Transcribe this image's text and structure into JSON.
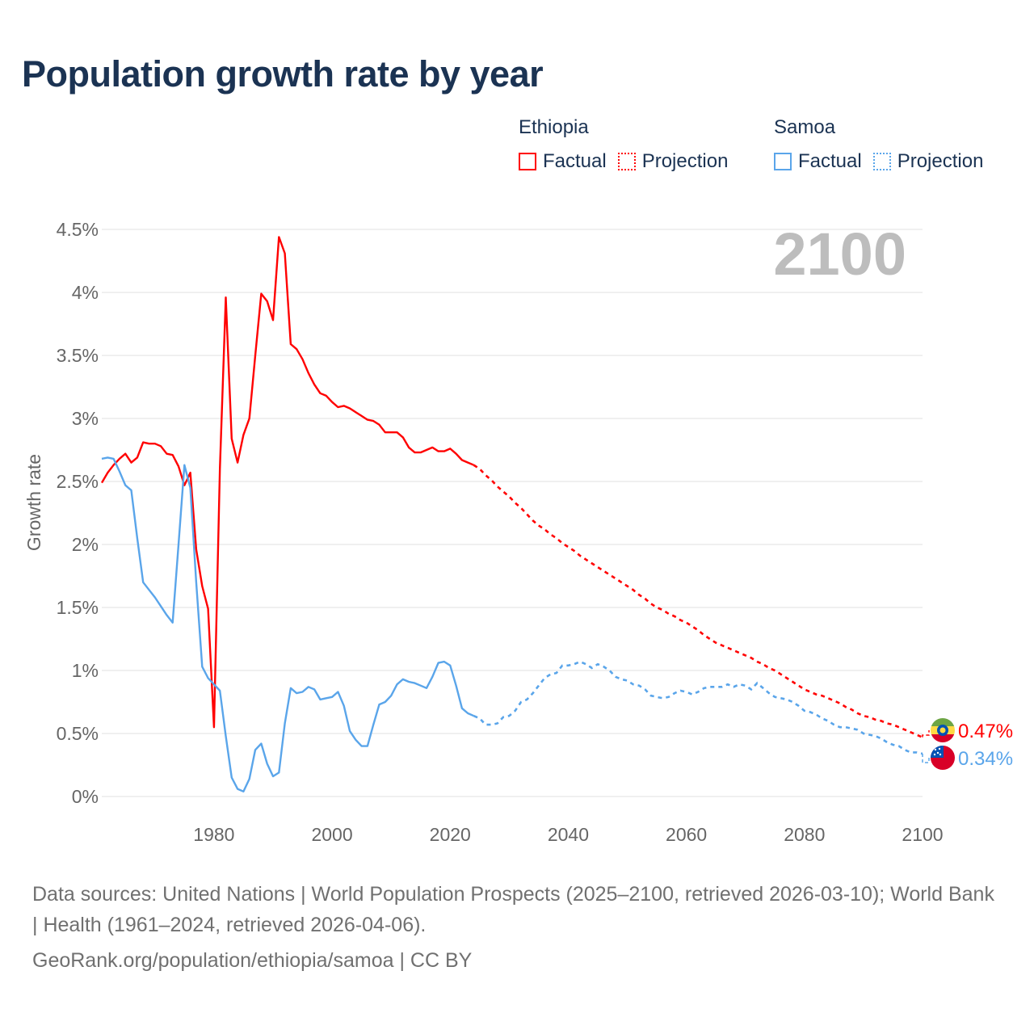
{
  "chart_data": {
    "type": "line",
    "title": "Population growth rate by year",
    "xlabel": "",
    "ylabel": "Growth rate",
    "xlim": [
      1961,
      2100
    ],
    "ylim": [
      0,
      4.5
    ],
    "x_ticks": [
      1980,
      2000,
      2020,
      2040,
      2060,
      2080,
      2100
    ],
    "x_tick_labels": [
      "1980",
      "2000",
      "2020",
      "2040",
      "2060",
      "2080",
      "2100"
    ],
    "y_ticks": [
      0,
      0.5,
      1,
      1.5,
      2,
      2.5,
      3,
      3.5,
      4,
      4.5
    ],
    "y_tick_labels": [
      "0%",
      "0.5%",
      "1%",
      "1.5%",
      "2%",
      "2.5%",
      "3%",
      "3.5%",
      "4%",
      "4.5%"
    ],
    "grid": true,
    "legend_placement": "top-right",
    "current_year_label": "2100",
    "series": [
      {
        "name": "Ethiopia",
        "color": "#ff0000",
        "end_label": "0.47%",
        "factual": {
          "label": "Factual",
          "start_year": 1961,
          "values": [
            2.49,
            2.57,
            2.63,
            2.68,
            2.72,
            2.65,
            2.69,
            2.81,
            2.8,
            2.8,
            2.78,
            2.72,
            2.71,
            2.62,
            2.47,
            2.57,
            1.96,
            1.67,
            1.49,
            0.55,
            2.6,
            3.96,
            2.84,
            2.65,
            2.87,
            3.0,
            3.5,
            3.99,
            3.93,
            3.78,
            4.44,
            4.31,
            3.59,
            3.55,
            3.47,
            3.36,
            3.27,
            3.2,
            3.18,
            3.13,
            3.09,
            3.1,
            3.08,
            3.05,
            3.02,
            2.99,
            2.98,
            2.95,
            2.89,
            2.89,
            2.89,
            2.85,
            2.77,
            2.73,
            2.73,
            2.75,
            2.77,
            2.74,
            2.74,
            2.76,
            2.72,
            2.67,
            2.65,
            2.63
          ]
        },
        "projection": {
          "label": "Projection",
          "start_year": 2025,
          "values": [
            2.6,
            2.55,
            2.51,
            2.46,
            2.42,
            2.38,
            2.33,
            2.29,
            2.24,
            2.19,
            2.15,
            2.12,
            2.08,
            2.05,
            2.01,
            1.98,
            1.95,
            1.91,
            1.88,
            1.85,
            1.82,
            1.79,
            1.76,
            1.73,
            1.7,
            1.67,
            1.64,
            1.6,
            1.57,
            1.53,
            1.5,
            1.48,
            1.45,
            1.43,
            1.4,
            1.38,
            1.35,
            1.32,
            1.28,
            1.25,
            1.22,
            1.2,
            1.18,
            1.16,
            1.14,
            1.12,
            1.1,
            1.07,
            1.05,
            1.02,
            1.0,
            0.97,
            0.94,
            0.91,
            0.88,
            0.85,
            0.83,
            0.81,
            0.8,
            0.78,
            0.76,
            0.74,
            0.71,
            0.69,
            0.66,
            0.64,
            0.63,
            0.61,
            0.6,
            0.58,
            0.57,
            0.55,
            0.53,
            0.51,
            0.49,
            0.47
          ]
        }
      },
      {
        "name": "Samoa",
        "color": "#5aa5ea",
        "end_label": "0.34%",
        "factual": {
          "label": "Factual",
          "start_year": 1961,
          "values": [
            2.68,
            2.69,
            2.68,
            2.58,
            2.47,
            2.43,
            2.05,
            1.7,
            1.64,
            1.58,
            1.51,
            1.44,
            1.38,
            2.0,
            2.63,
            2.45,
            1.7,
            1.03,
            0.94,
            0.89,
            0.84,
            0.48,
            0.15,
            0.06,
            0.04,
            0.14,
            0.37,
            0.42,
            0.26,
            0.16,
            0.19,
            0.58,
            0.86,
            0.82,
            0.83,
            0.87,
            0.85,
            0.77,
            0.78,
            0.79,
            0.83,
            0.72,
            0.52,
            0.45,
            0.4,
            0.4,
            0.57,
            0.73,
            0.75,
            0.8,
            0.89,
            0.93,
            0.91,
            0.9,
            0.88,
            0.86,
            0.95,
            1.06,
            1.07,
            1.04,
            0.88,
            0.7,
            0.66,
            0.64
          ]
        },
        "projection": {
          "label": "Projection",
          "start_year": 2025,
          "values": [
            0.62,
            0.57,
            0.57,
            0.58,
            0.63,
            0.64,
            0.68,
            0.75,
            0.77,
            0.82,
            0.88,
            0.94,
            0.97,
            0.98,
            1.04,
            1.04,
            1.05,
            1.07,
            1.05,
            1.02,
            1.05,
            1.03,
            1.0,
            0.95,
            0.93,
            0.92,
            0.89,
            0.88,
            0.85,
            0.8,
            0.79,
            0.78,
            0.79,
            0.82,
            0.84,
            0.83,
            0.81,
            0.83,
            0.86,
            0.87,
            0.87,
            0.87,
            0.89,
            0.87,
            0.89,
            0.88,
            0.85,
            0.9,
            0.86,
            0.82,
            0.79,
            0.78,
            0.77,
            0.75,
            0.72,
            0.68,
            0.67,
            0.65,
            0.62,
            0.6,
            0.57,
            0.55,
            0.55,
            0.54,
            0.53,
            0.5,
            0.49,
            0.48,
            0.46,
            0.43,
            0.41,
            0.4,
            0.37,
            0.35,
            0.35,
            0.34
          ]
        }
      }
    ]
  },
  "footer": {
    "sources": "Data sources: United Nations | World Population Prospects (2025–2100, retrieved 2026-03-10); World Bank | Health (1961–2024, retrieved 2026-04-06).",
    "credit": "GeoRank.org/population/ethiopia/samoa | CC BY"
  }
}
